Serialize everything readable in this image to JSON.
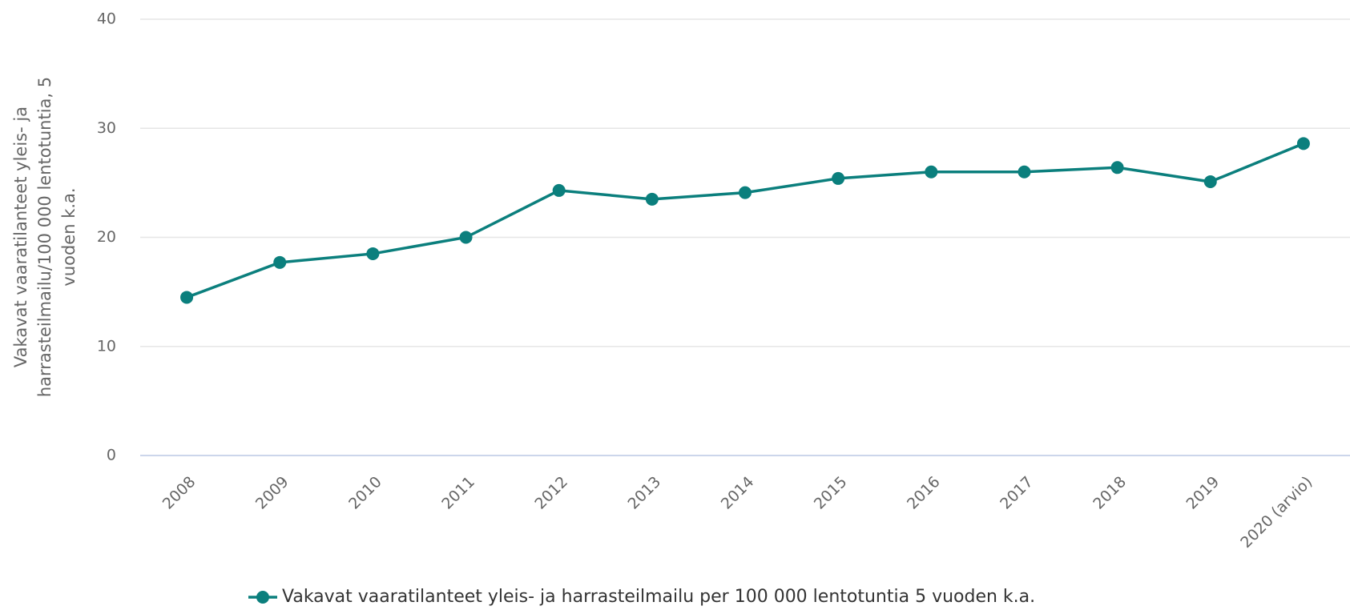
{
  "chart_data": {
    "type": "line",
    "y_label": "Vakavat vaaratilanteet yleis- ja harrasteilmailu/100 000 lentotuntia, 5 vuoden k.a.",
    "categories": [
      "2008",
      "2009",
      "2010",
      "2011",
      "2012",
      "2013",
      "2014",
      "2015",
      "2016",
      "2017",
      "2018",
      "2019",
      "2020 (arvio)"
    ],
    "series": [
      {
        "name": "Vakavat vaaratilanteet yleis- ja harrasteilmailu per 100 000 lentotuntia 5 vuoden k.a.",
        "color": "#0b7f7d",
        "values": [
          14.5,
          17.7,
          18.5,
          20.0,
          24.3,
          23.5,
          24.1,
          25.4,
          26.0,
          26.0,
          26.4,
          25.1,
          28.6
        ]
      }
    ],
    "ylim": [
      0,
      40
    ],
    "yticks": [
      0,
      10,
      20,
      30,
      40
    ],
    "grid": true,
    "legend": "bottom"
  }
}
